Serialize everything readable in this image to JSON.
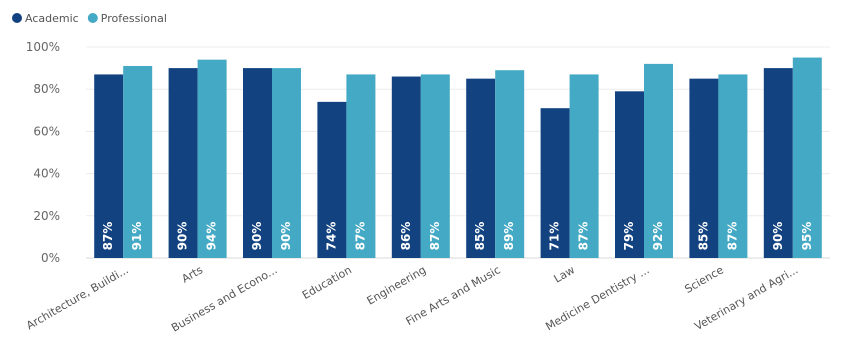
{
  "chart_data": {
    "type": "bar",
    "title": "",
    "xlabel": "",
    "ylabel": "",
    "ylim": [
      0,
      100
    ],
    "yticks": [
      "0%",
      "20%",
      "40%",
      "60%",
      "80%",
      "100%"
    ],
    "grid": true,
    "legend": "top-left",
    "categories": [
      "Architecture, Buildi...",
      "Arts",
      "Business and Econo...",
      "Education",
      "Engineering",
      "Fine Arts and Music",
      "Law",
      "Medicine Dentistry ...",
      "Science",
      "Veterinary and Agri..."
    ],
    "series": [
      {
        "name": "Academic",
        "color": "#12427f",
        "values": [
          87,
          90,
          90,
          74,
          86,
          85,
          71,
          79,
          85,
          90
        ],
        "labels": [
          "87%",
          "90%",
          "90%",
          "74%",
          "86%",
          "85%",
          "71%",
          "79%",
          "85%",
          "90%"
        ]
      },
      {
        "name": "Professional",
        "color": "#44a9c4",
        "values": [
          91,
          94,
          90,
          87,
          87,
          89,
          87,
          92,
          87,
          95
        ],
        "labels": [
          "91%",
          "94%",
          "90%",
          "87%",
          "87%",
          "89%",
          "87%",
          "92%",
          "87%",
          "95%"
        ]
      }
    ]
  }
}
